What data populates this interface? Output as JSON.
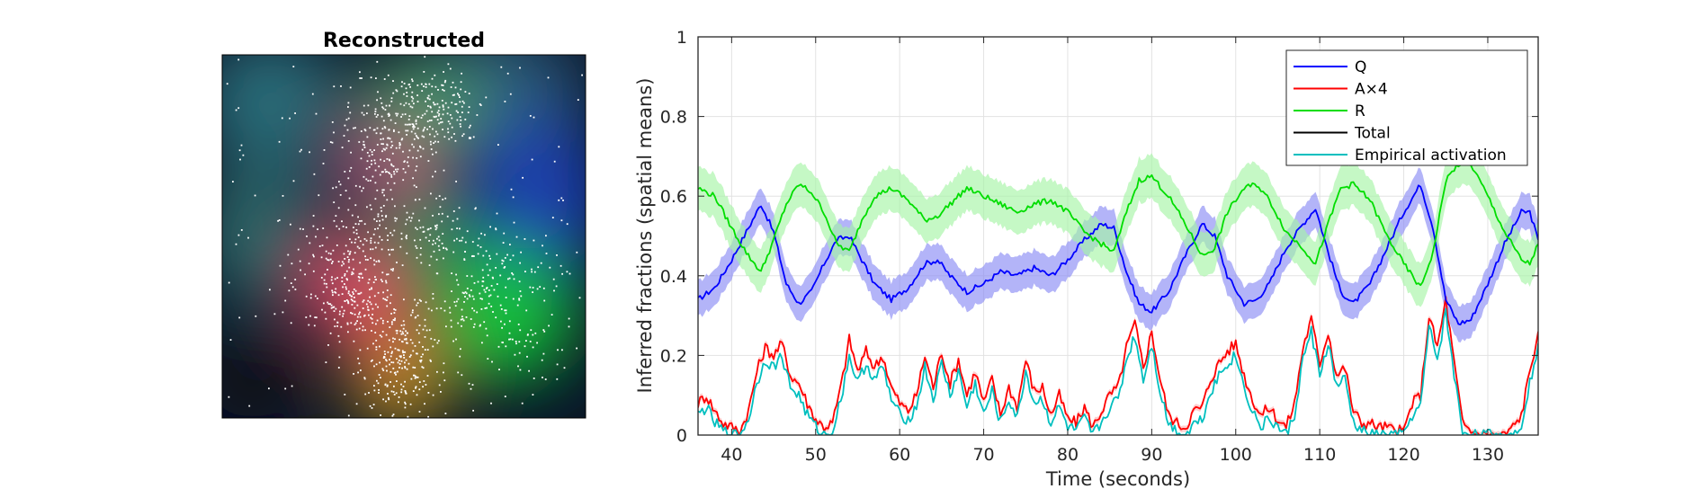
{
  "image_panel": {
    "title": "Reconstructed"
  },
  "chart_data": {
    "type": "line",
    "xlabel": "Time (seconds)",
    "ylabel": "Inferred fractions (spatial means)",
    "xlim": [
      36,
      136
    ],
    "ylim": [
      0,
      1
    ],
    "xticks": [
      40,
      50,
      60,
      70,
      80,
      90,
      100,
      110,
      120,
      130
    ],
    "yticks": [
      0,
      0.2,
      0.4,
      0.6,
      0.8,
      1
    ],
    "grid": true,
    "legend_position": "top-right",
    "series": [
      {
        "name": "Q",
        "color": "#0000ff",
        "band_color": "#8a8cf5",
        "band_halfwidth": 0.045,
        "points": [
          [
            36,
            0.34
          ],
          [
            38,
            0.37
          ],
          [
            40,
            0.44
          ],
          [
            42,
            0.52
          ],
          [
            43.5,
            0.58
          ],
          [
            45,
            0.51
          ],
          [
            46.5,
            0.38
          ],
          [
            48,
            0.33
          ],
          [
            49.5,
            0.36
          ],
          [
            51,
            0.43
          ],
          [
            52.5,
            0.49
          ],
          [
            54,
            0.5
          ],
          [
            55.5,
            0.44
          ],
          [
            57,
            0.38
          ],
          [
            59,
            0.34
          ],
          [
            61,
            0.37
          ],
          [
            63,
            0.43
          ],
          [
            64.5,
            0.44
          ],
          [
            66,
            0.4
          ],
          [
            68,
            0.36
          ],
          [
            70,
            0.38
          ],
          [
            72,
            0.41
          ],
          [
            74,
            0.4
          ],
          [
            76,
            0.42
          ],
          [
            78,
            0.4
          ],
          [
            80,
            0.44
          ],
          [
            82,
            0.49
          ],
          [
            84,
            0.53
          ],
          [
            85.5,
            0.52
          ],
          [
            87,
            0.41
          ],
          [
            88.5,
            0.33
          ],
          [
            90,
            0.31
          ],
          [
            92,
            0.36
          ],
          [
            94,
            0.45
          ],
          [
            96,
            0.53
          ],
          [
            97.5,
            0.5
          ],
          [
            99,
            0.4
          ],
          [
            101,
            0.33
          ],
          [
            102.5,
            0.34
          ],
          [
            104,
            0.38
          ],
          [
            106,
            0.47
          ],
          [
            108,
            0.53
          ],
          [
            109.5,
            0.57
          ],
          [
            111,
            0.46
          ],
          [
            112.5,
            0.36
          ],
          [
            114,
            0.33
          ],
          [
            116,
            0.38
          ],
          [
            118,
            0.47
          ],
          [
            120,
            0.56
          ],
          [
            122,
            0.63
          ],
          [
            123.5,
            0.52
          ],
          [
            125,
            0.34
          ],
          [
            126.5,
            0.28
          ],
          [
            128,
            0.29
          ],
          [
            130,
            0.38
          ],
          [
            132,
            0.48
          ],
          [
            134,
            0.56
          ],
          [
            135,
            0.56
          ],
          [
            136,
            0.49
          ]
        ]
      },
      {
        "name": "A×4",
        "color": "#ff0000",
        "band_color": "#ffb3b3",
        "band_halfwidth": 0.008,
        "points": [
          [
            36,
            0.08
          ],
          [
            37,
            0.1
          ],
          [
            38,
            0.06
          ],
          [
            39,
            0.03
          ],
          [
            40,
            0.02
          ],
          [
            41,
            0.01
          ],
          [
            42,
            0.06
          ],
          [
            43,
            0.16
          ],
          [
            44,
            0.22
          ],
          [
            45,
            0.2
          ],
          [
            46,
            0.23
          ],
          [
            47,
            0.15
          ],
          [
            48,
            0.13
          ],
          [
            49,
            0.08
          ],
          [
            50,
            0.04
          ],
          [
            51,
            0.02
          ],
          [
            52,
            0.03
          ],
          [
            53,
            0.12
          ],
          [
            54,
            0.24
          ],
          [
            55,
            0.16
          ],
          [
            56,
            0.21
          ],
          [
            57,
            0.17
          ],
          [
            58,
            0.2
          ],
          [
            59,
            0.12
          ],
          [
            60,
            0.08
          ],
          [
            61,
            0.06
          ],
          [
            62,
            0.1
          ],
          [
            63,
            0.2
          ],
          [
            64,
            0.12
          ],
          [
            65,
            0.21
          ],
          [
            66,
            0.13
          ],
          [
            67,
            0.19
          ],
          [
            68,
            0.1
          ],
          [
            69,
            0.16
          ],
          [
            70,
            0.08
          ],
          [
            71,
            0.14
          ],
          [
            72,
            0.05
          ],
          [
            73,
            0.12
          ],
          [
            74,
            0.07
          ],
          [
            75,
            0.19
          ],
          [
            76,
            0.11
          ],
          [
            77,
            0.12
          ],
          [
            78,
            0.05
          ],
          [
            79,
            0.1
          ],
          [
            80,
            0.04
          ],
          [
            81,
            0.03
          ],
          [
            82,
            0.07
          ],
          [
            83,
            0.02
          ],
          [
            84,
            0.06
          ],
          [
            85,
            0.1
          ],
          [
            86,
            0.12
          ],
          [
            87,
            0.22
          ],
          [
            88,
            0.28
          ],
          [
            89,
            0.17
          ],
          [
            90,
            0.26
          ],
          [
            91,
            0.14
          ],
          [
            92,
            0.05
          ],
          [
            93,
            0.03
          ],
          [
            94,
            0.02
          ],
          [
            95,
            0.06
          ],
          [
            96,
            0.07
          ],
          [
            97,
            0.14
          ],
          [
            98,
            0.18
          ],
          [
            99,
            0.21
          ],
          [
            100,
            0.23
          ],
          [
            101,
            0.15
          ],
          [
            102,
            0.09
          ],
          [
            103,
            0.05
          ],
          [
            104,
            0.07
          ],
          [
            105,
            0.04
          ],
          [
            106,
            0.02
          ],
          [
            107,
            0.08
          ],
          [
            108,
            0.22
          ],
          [
            109,
            0.29
          ],
          [
            110,
            0.18
          ],
          [
            111,
            0.26
          ],
          [
            112,
            0.15
          ],
          [
            113,
            0.17
          ],
          [
            114,
            0.06
          ],
          [
            115,
            0.03
          ],
          [
            116,
            0.03
          ],
          [
            117,
            0.02
          ],
          [
            118,
            0.02
          ],
          [
            119,
            0.01
          ],
          [
            120,
            0.01
          ],
          [
            121,
            0.08
          ],
          [
            122,
            0.1
          ],
          [
            123,
            0.3
          ],
          [
            124,
            0.22
          ],
          [
            125,
            0.34
          ],
          [
            126,
            0.18
          ],
          [
            127,
            0.03
          ],
          [
            128,
            0.01
          ],
          [
            129,
            0.0
          ],
          [
            130,
            0.0
          ],
          [
            131,
            0.0
          ],
          [
            132,
            0.0
          ],
          [
            133,
            0.02
          ],
          [
            134,
            0.05
          ],
          [
            135,
            0.16
          ],
          [
            136,
            0.26
          ]
        ]
      },
      {
        "name": "R",
        "color": "#00dd00",
        "band_color": "#a6f5a6",
        "band_halfwidth": 0.055,
        "points": [
          [
            36,
            0.62
          ],
          [
            38,
            0.6
          ],
          [
            40,
            0.52
          ],
          [
            42,
            0.45
          ],
          [
            43.5,
            0.41
          ],
          [
            45,
            0.49
          ],
          [
            46.5,
            0.58
          ],
          [
            48,
            0.63
          ],
          [
            49.5,
            0.61
          ],
          [
            51,
            0.56
          ],
          [
            52.5,
            0.48
          ],
          [
            54,
            0.46
          ],
          [
            55.5,
            0.54
          ],
          [
            57,
            0.6
          ],
          [
            59,
            0.62
          ],
          [
            61,
            0.59
          ],
          [
            63,
            0.54
          ],
          [
            64.5,
            0.55
          ],
          [
            66,
            0.58
          ],
          [
            68,
            0.62
          ],
          [
            70,
            0.6
          ],
          [
            72,
            0.58
          ],
          [
            74,
            0.56
          ],
          [
            76,
            0.58
          ],
          [
            78,
            0.59
          ],
          [
            80,
            0.56
          ],
          [
            82,
            0.51
          ],
          [
            84,
            0.48
          ],
          [
            85.5,
            0.46
          ],
          [
            87,
            0.56
          ],
          [
            88.5,
            0.64
          ],
          [
            90,
            0.65
          ],
          [
            92,
            0.6
          ],
          [
            94,
            0.53
          ],
          [
            96,
            0.45
          ],
          [
            97.5,
            0.47
          ],
          [
            99,
            0.56
          ],
          [
            101,
            0.62
          ],
          [
            102.5,
            0.63
          ],
          [
            104,
            0.59
          ],
          [
            106,
            0.51
          ],
          [
            108,
            0.47
          ],
          [
            109.5,
            0.43
          ],
          [
            111,
            0.53
          ],
          [
            112.5,
            0.62
          ],
          [
            114,
            0.63
          ],
          [
            116,
            0.59
          ],
          [
            118,
            0.5
          ],
          [
            120,
            0.43
          ],
          [
            122,
            0.37
          ],
          [
            123.5,
            0.46
          ],
          [
            125,
            0.64
          ],
          [
            126.5,
            0.68
          ],
          [
            128,
            0.68
          ],
          [
            130,
            0.6
          ],
          [
            132,
            0.51
          ],
          [
            134,
            0.44
          ],
          [
            135,
            0.43
          ],
          [
            136,
            0.48
          ]
        ]
      },
      {
        "name": "Total",
        "color": "#000000",
        "points": []
      },
      {
        "name": "Empirical activation",
        "color": "#00bfbf",
        "band_color": "#9ee6e6",
        "band_halfwidth": 0.0,
        "points": [
          [
            36,
            0.05
          ],
          [
            37,
            0.07
          ],
          [
            38,
            0.03
          ],
          [
            39,
            0.01
          ],
          [
            40,
            0.0
          ],
          [
            41,
            0.0
          ],
          [
            42,
            0.04
          ],
          [
            43,
            0.13
          ],
          [
            44,
            0.19
          ],
          [
            45,
            0.17
          ],
          [
            46,
            0.2
          ],
          [
            47,
            0.12
          ],
          [
            48,
            0.1
          ],
          [
            49,
            0.05
          ],
          [
            50,
            0.02
          ],
          [
            51,
            0.0
          ],
          [
            52,
            0.01
          ],
          [
            53,
            0.09
          ],
          [
            54,
            0.2
          ],
          [
            55,
            0.13
          ],
          [
            56,
            0.18
          ],
          [
            57,
            0.14
          ],
          [
            58,
            0.17
          ],
          [
            59,
            0.09
          ],
          [
            60,
            0.05
          ],
          [
            61,
            0.04
          ],
          [
            62,
            0.07
          ],
          [
            63,
            0.17
          ],
          [
            64,
            0.09
          ],
          [
            65,
            0.18
          ],
          [
            66,
            0.1
          ],
          [
            67,
            0.16
          ],
          [
            68,
            0.07
          ],
          [
            69,
            0.13
          ],
          [
            70,
            0.05
          ],
          [
            71,
            0.11
          ],
          [
            72,
            0.03
          ],
          [
            73,
            0.09
          ],
          [
            74,
            0.04
          ],
          [
            75,
            0.16
          ],
          [
            76,
            0.08
          ],
          [
            77,
            0.09
          ],
          [
            78,
            0.03
          ],
          [
            79,
            0.07
          ],
          [
            80,
            0.02
          ],
          [
            81,
            0.01
          ],
          [
            82,
            0.04
          ],
          [
            83,
            0.0
          ],
          [
            84,
            0.03
          ],
          [
            85,
            0.07
          ],
          [
            86,
            0.09
          ],
          [
            87,
            0.19
          ],
          [
            88,
            0.25
          ],
          [
            89,
            0.14
          ],
          [
            90,
            0.23
          ],
          [
            91,
            0.11
          ],
          [
            92,
            0.03
          ],
          [
            93,
            0.01
          ],
          [
            94,
            0.0
          ],
          [
            95,
            0.03
          ],
          [
            96,
            0.04
          ],
          [
            97,
            0.11
          ],
          [
            98,
            0.15
          ],
          [
            99,
            0.18
          ],
          [
            100,
            0.2
          ],
          [
            101,
            0.12
          ],
          [
            102,
            0.06
          ],
          [
            103,
            0.02
          ],
          [
            104,
            0.04
          ],
          [
            105,
            0.02
          ],
          [
            106,
            0.0
          ],
          [
            107,
            0.05
          ],
          [
            108,
            0.19
          ],
          [
            109,
            0.26
          ],
          [
            110,
            0.15
          ],
          [
            111,
            0.23
          ],
          [
            112,
            0.12
          ],
          [
            113,
            0.14
          ],
          [
            114,
            0.03
          ],
          [
            115,
            0.01
          ],
          [
            116,
            0.0
          ],
          [
            117,
            0.0
          ],
          [
            118,
            0.0
          ],
          [
            119,
            0.0
          ],
          [
            120,
            0.0
          ],
          [
            121,
            0.05
          ],
          [
            122,
            0.07
          ],
          [
            123,
            0.27
          ],
          [
            124,
            0.19
          ],
          [
            125,
            0.31
          ],
          [
            126,
            0.15
          ],
          [
            127,
            0.01
          ],
          [
            128,
            0.0
          ],
          [
            129,
            0.0
          ],
          [
            130,
            0.0
          ],
          [
            131,
            0.0
          ],
          [
            132,
            0.0
          ],
          [
            133,
            0.0
          ],
          [
            134,
            0.03
          ],
          [
            135,
            0.13
          ],
          [
            136,
            0.23
          ]
        ]
      }
    ]
  }
}
